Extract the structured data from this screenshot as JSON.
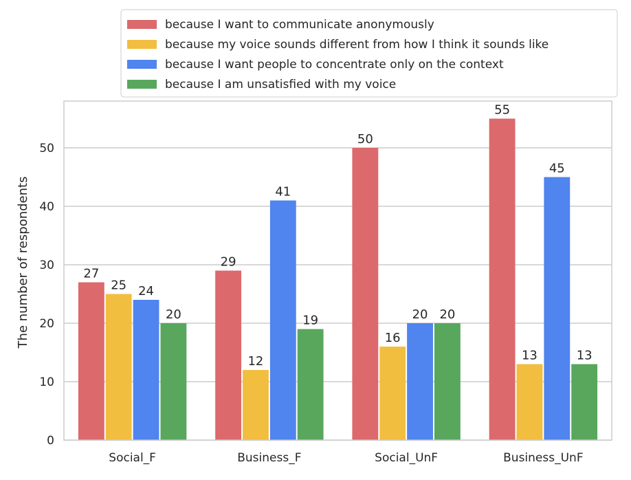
{
  "chart_data": {
    "type": "bar",
    "title": "",
    "xlabel": "",
    "ylabel": "The number of respondents",
    "ylim": [
      0,
      58
    ],
    "yticks": [
      0,
      10,
      20,
      30,
      40,
      50
    ],
    "grid": true,
    "legend_position": "top",
    "categories": [
      "Social_F",
      "Business_F",
      "Social_UnF",
      "Business_UnF"
    ],
    "series": [
      {
        "name": "because I want to communicate anonymously",
        "color": "#dc696c",
        "values": [
          27,
          29,
          50,
          55
        ]
      },
      {
        "name": "because my voice sounds different from how I think it sounds like",
        "color": "#f2be40",
        "values": [
          25,
          12,
          16,
          13
        ]
      },
      {
        "name": "because I want people to concentrate only on the context",
        "color": "#5084ee",
        "values": [
          24,
          41,
          20,
          45
        ]
      },
      {
        "name": "because I am unsatisfied with my voice",
        "color": "#58a75c",
        "values": [
          20,
          19,
          20,
          13
        ]
      }
    ]
  }
}
